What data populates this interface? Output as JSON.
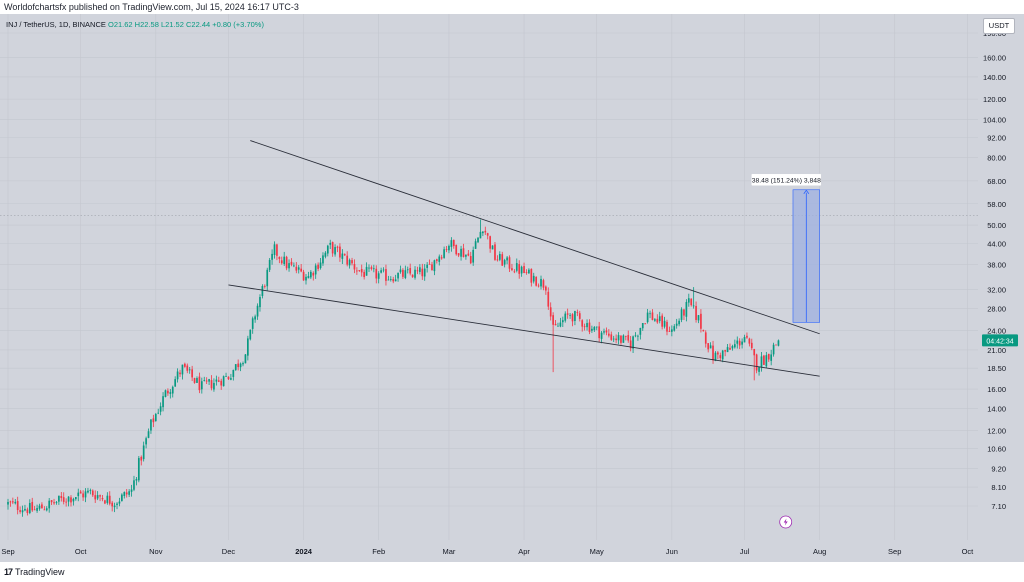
{
  "header": {
    "publisher_line": "Worldofchartsfx published on TradingView.com, Jul 15, 2024 16:17 UTC-3"
  },
  "legend": {
    "symbol": "INJ / TetherUS, 1D, BINANCE",
    "ohlc": "O21.62 H22.58 L21.52 C22.44 +0.80 (+3.70%)"
  },
  "currency": "USDT",
  "footer": {
    "brand": "TradingView",
    "brand_mark": "17"
  },
  "colors": {
    "background": "#d1d4dc",
    "up": "#089981",
    "down": "#f23645",
    "measure_fill": "#9db0e0",
    "measure_line": "#2962ff",
    "trendline": "#2a2e39",
    "price_label": "#089981"
  },
  "chart_data": {
    "type": "candlestick",
    "title": "",
    "xlabel": "",
    "ylabel": "",
    "y_scale": "log",
    "ylim": [
      6.5,
      215
    ],
    "y_ticks": [
      "190.00",
      "160.00",
      "140.00",
      "120.00",
      "104.00",
      "92.00",
      "80.00",
      "68.00",
      "58.00",
      "50.00",
      "44.00",
      "38.00",
      "32.00",
      "28.00",
      "24.00",
      "21.00",
      "18.50",
      "16.00",
      "14.00",
      "12.00",
      "10.60",
      "9.20",
      "8.10",
      "7.10"
    ],
    "x_ticks": [
      "Sep",
      "Oct",
      "Nov",
      "Dec",
      "2024",
      "Feb",
      "Mar",
      "Apr",
      "May",
      "Jun",
      "Jul",
      "Aug",
      "Sep",
      "Oct"
    ],
    "price_anchors": [
      {
        "date": "2023-09-01",
        "close": 7.2
      },
      {
        "date": "2023-09-12",
        "close": 6.9
      },
      {
        "date": "2023-09-25",
        "close": 7.5
      },
      {
        "date": "2023-10-05",
        "close": 7.8
      },
      {
        "date": "2023-10-15",
        "close": 7.3
      },
      {
        "date": "2023-10-22",
        "close": 7.9
      },
      {
        "date": "2023-10-25",
        "close": 9.5
      },
      {
        "date": "2023-10-30",
        "close": 12.5
      },
      {
        "date": "2023-11-05",
        "close": 15.5
      },
      {
        "date": "2023-11-12",
        "close": 18.5
      },
      {
        "date": "2023-11-20",
        "close": 16.2
      },
      {
        "date": "2023-12-01",
        "close": 17.5
      },
      {
        "date": "2023-12-08",
        "close": 20.5
      },
      {
        "date": "2023-12-12",
        "close": 27.0
      },
      {
        "date": "2023-12-15",
        "close": 32.0
      },
      {
        "date": "2023-12-20",
        "close": 42.0
      },
      {
        "date": "2023-12-25",
        "close": 38.0
      },
      {
        "date": "2024-01-03",
        "close": 35.0
      },
      {
        "date": "2024-01-12",
        "close": 43.0
      },
      {
        "date": "2024-01-25",
        "close": 36.0
      },
      {
        "date": "2024-02-05",
        "close": 35.0
      },
      {
        "date": "2024-02-20",
        "close": 36.0
      },
      {
        "date": "2024-03-01",
        "close": 44.0
      },
      {
        "date": "2024-03-10",
        "close": 40.0
      },
      {
        "date": "2024-03-15",
        "close": 50.0
      },
      {
        "date": "2024-03-20",
        "close": 40.0
      },
      {
        "date": "2024-04-01",
        "close": 36.0
      },
      {
        "date": "2024-04-10",
        "close": 33.0
      },
      {
        "date": "2024-04-13",
        "close": 24.0
      },
      {
        "date": "2024-04-20",
        "close": 27.0
      },
      {
        "date": "2024-05-01",
        "close": 24.0
      },
      {
        "date": "2024-05-15",
        "close": 22.0
      },
      {
        "date": "2024-05-22",
        "close": 27.0
      },
      {
        "date": "2024-06-01",
        "close": 24.0
      },
      {
        "date": "2024-06-08",
        "close": 29.0
      },
      {
        "date": "2024-06-12",
        "close": 26.0
      },
      {
        "date": "2024-06-18",
        "close": 20.0
      },
      {
        "date": "2024-06-25",
        "close": 21.0
      },
      {
        "date": "2024-07-01",
        "close": 23.0
      },
      {
        "date": "2024-07-06",
        "close": 19.0
      },
      {
        "date": "2024-07-10",
        "close": 20.0
      },
      {
        "date": "2024-07-15",
        "close": 22.44
      }
    ],
    "wicks": [
      {
        "date": "2024-04-13",
        "low": 18.0
      },
      {
        "date": "2024-03-14",
        "high": 52.0
      },
      {
        "date": "2024-06-10",
        "high": 32.5
      },
      {
        "date": "2024-07-05",
        "low": 17.0
      }
    ],
    "trendlines": [
      {
        "from": {
          "date": "2023-12-10",
          "price": 90.0
        },
        "to": {
          "date": "2024-08-01",
          "price": 23.5
        }
      },
      {
        "from": {
          "date": "2023-12-01",
          "price": 33.0
        },
        "to": {
          "date": "2024-08-01",
          "price": 17.5
        }
      }
    ],
    "horizontal_line": {
      "price": 53.5
    },
    "measure": {
      "label": "38.48 (151.24%) 3,848",
      "from_price": 25.44,
      "to_price": 63.92,
      "start_date": "2024-07-21",
      "end_date": "2024-08-01"
    },
    "last_price_label": "04:42:34",
    "last_price": 22.44
  }
}
